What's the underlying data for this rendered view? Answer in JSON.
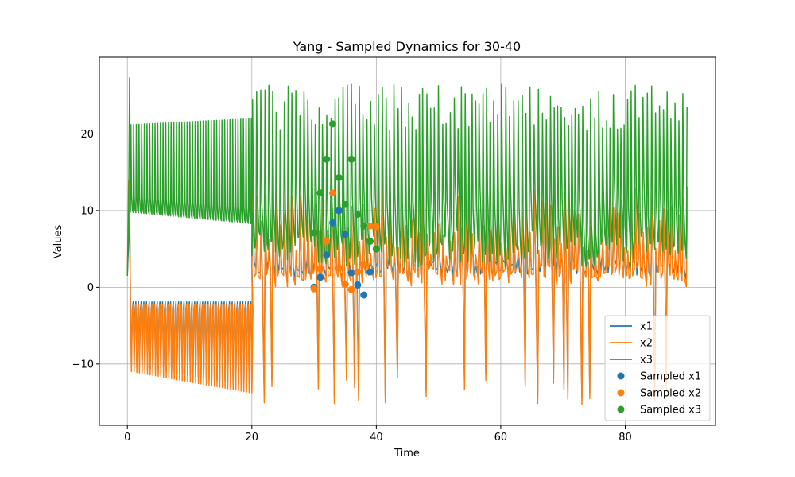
{
  "chart_data": {
    "type": "line",
    "title": "Yang - Sampled Dynamics for 30-40",
    "xlabel": "Time",
    "ylabel": "Values",
    "xlim": [
      -4.5,
      94.5
    ],
    "ylim": [
      -18,
      30
    ],
    "xticks": [
      0,
      20,
      40,
      60,
      80
    ],
    "yticks": [
      -10,
      0,
      10,
      20
    ],
    "grid": true,
    "legend_position": "lower right",
    "colors": {
      "x1": "#1f77b4",
      "x2": "#ff7f0e",
      "x3": "#2ca02c"
    },
    "series": [
      {
        "name": "x1",
        "kind": "line"
      },
      {
        "name": "x2",
        "kind": "line"
      },
      {
        "name": "x3",
        "kind": "line"
      },
      {
        "name": "Sampled x1",
        "kind": "scatter",
        "x": [
          30,
          31,
          32,
          33,
          34,
          35,
          36,
          37,
          38,
          39,
          40
        ],
        "y": [
          0.0,
          1.3,
          4.2,
          8.4,
          10.0,
          6.9,
          1.9,
          0.3,
          -1.0,
          2.0,
          5.0
        ]
      },
      {
        "name": "Sampled x2",
        "kind": "scatter",
        "x": [
          30,
          31,
          32,
          33,
          34,
          35,
          36,
          37,
          38,
          39,
          40
        ],
        "y": [
          -0.2,
          2.4,
          6.0,
          12.3,
          2.5,
          0.4,
          -0.3,
          2.0,
          3.0,
          8.0,
          7.9
        ]
      },
      {
        "name": "Sampled x3",
        "kind": "scatter",
        "x": [
          30,
          31,
          32,
          33,
          34,
          35,
          36,
          37,
          38,
          39,
          40
        ],
        "y": [
          7.1,
          12.3,
          16.7,
          21.3,
          14.3,
          10.8,
          16.7,
          9.5,
          8.0,
          6.0,
          5.0
        ]
      }
    ],
    "line_model": {
      "t_end": 90,
      "steady_phase": {
        "t_start": 0.5,
        "t_end": 20,
        "period": 0.43,
        "x3_min_start": 9.8,
        "x3_min_end": 8.3,
        "x3_max_start": 21.2,
        "x3_max_end": 22.0,
        "x2_min_start": -11.0,
        "x2_min_end": -13.8,
        "x2_max": -2.2
      },
      "chaotic_phase": {
        "t_start": 20,
        "t_end": 90,
        "period": 0.61,
        "x3_min": 2.6,
        "x3_max": 26.5,
        "x2_min": -15.7,
        "x2_max": 13.8
      }
    }
  }
}
